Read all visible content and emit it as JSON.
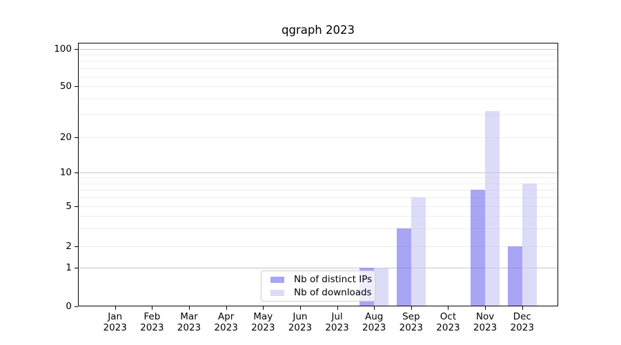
{
  "figure": {
    "title": "qgraph 2023"
  },
  "y_axis": {
    "tick_labels": [
      "100",
      "50",
      "20",
      "10",
      "5",
      "2",
      "1",
      "0"
    ],
    "tick_values": [
      100,
      50,
      20,
      10,
      5,
      2,
      1,
      0
    ]
  },
  "x_axis": {
    "months": [
      "Jan",
      "Feb",
      "Mar",
      "Apr",
      "May",
      "Jun",
      "Jul",
      "Aug",
      "Sep",
      "Oct",
      "Nov",
      "Dec"
    ],
    "year": "2023"
  },
  "legend": {
    "items": [
      {
        "label": "Nb of distinct IPs"
      },
      {
        "label": "Nb of downloads"
      }
    ]
  },
  "chart_data": {
    "type": "bar",
    "title": "qgraph 2023",
    "categories": [
      "Jan 2023",
      "Feb 2023",
      "Mar 2023",
      "Apr 2023",
      "May 2023",
      "Jun 2023",
      "Jul 2023",
      "Aug 2023",
      "Sep 2023",
      "Oct 2023",
      "Nov 2023",
      "Dec 2023"
    ],
    "series": [
      {
        "name": "Nb of distinct IPs",
        "color": "rgba(123,117,238,0.65)",
        "values": [
          0,
          0,
          0,
          0,
          0,
          0,
          0,
          1,
          3,
          0,
          7,
          2
        ]
      },
      {
        "name": "Nb of downloads",
        "color": "rgba(201,200,244,0.65)",
        "values": [
          0,
          0,
          0,
          0,
          0,
          0,
          0,
          1,
          6,
          0,
          32,
          8
        ]
      }
    ],
    "yscale": "symlog",
    "ylim": [
      0,
      110
    ],
    "yticks": [
      0,
      1,
      2,
      5,
      10,
      20,
      50,
      100
    ],
    "major_gridlines": [
      1,
      10,
      100
    ],
    "minor_gridlines": [
      2,
      3,
      4,
      5,
      6,
      7,
      8,
      9,
      20,
      30,
      40,
      50,
      60,
      70,
      80,
      90
    ],
    "grid": true,
    "legend_position": "lower center inside axes",
    "colors": {
      "major_grid": "#c6c6c6",
      "minor_grid": "#ededed",
      "axis": "#000000",
      "background": "#ffffff"
    }
  }
}
